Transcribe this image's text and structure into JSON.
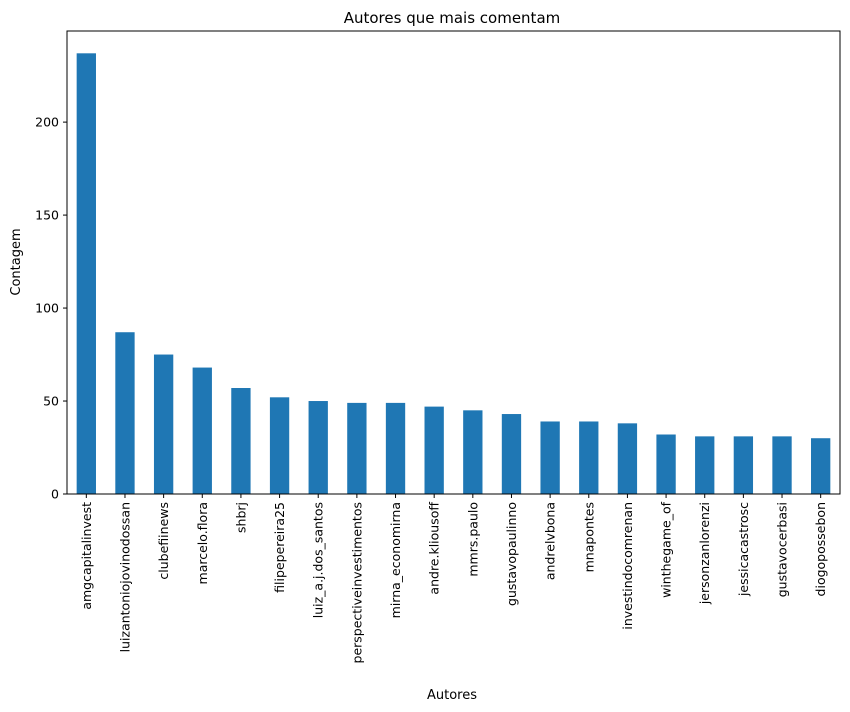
{
  "chart_data": {
    "type": "bar",
    "title": "Autores que mais comentam",
    "xlabel": "Autores",
    "ylabel": "Contagem",
    "categories": [
      "amgcapitalinvest",
      "luizantoniojovinodossan",
      "clubefiinews",
      "marcelo.flora",
      "shbrj",
      "filipepereira25",
      "luiz_a.j.dos_santos",
      "perspectiveinvestimentos",
      "mirna_economirna",
      "andre.kliousoff",
      "mmrs.paulo",
      "gustavopaulinno",
      "andrelvbona",
      "mnapontes",
      "investindocomrenan",
      "winthegame_of",
      "jersonzanlorenzi",
      "jessicacastrosc",
      "gustavocerbasi",
      "diogopossebon"
    ],
    "values": [
      237,
      87,
      75,
      68,
      57,
      52,
      50,
      49,
      49,
      47,
      45,
      43,
      39,
      39,
      38,
      32,
      31,
      31,
      31,
      30
    ],
    "ylim": [
      0,
      249
    ],
    "yticks": [
      0,
      50,
      100,
      150,
      200
    ],
    "bar_color": "#1f77b4",
    "grid": false,
    "legend": "none"
  }
}
